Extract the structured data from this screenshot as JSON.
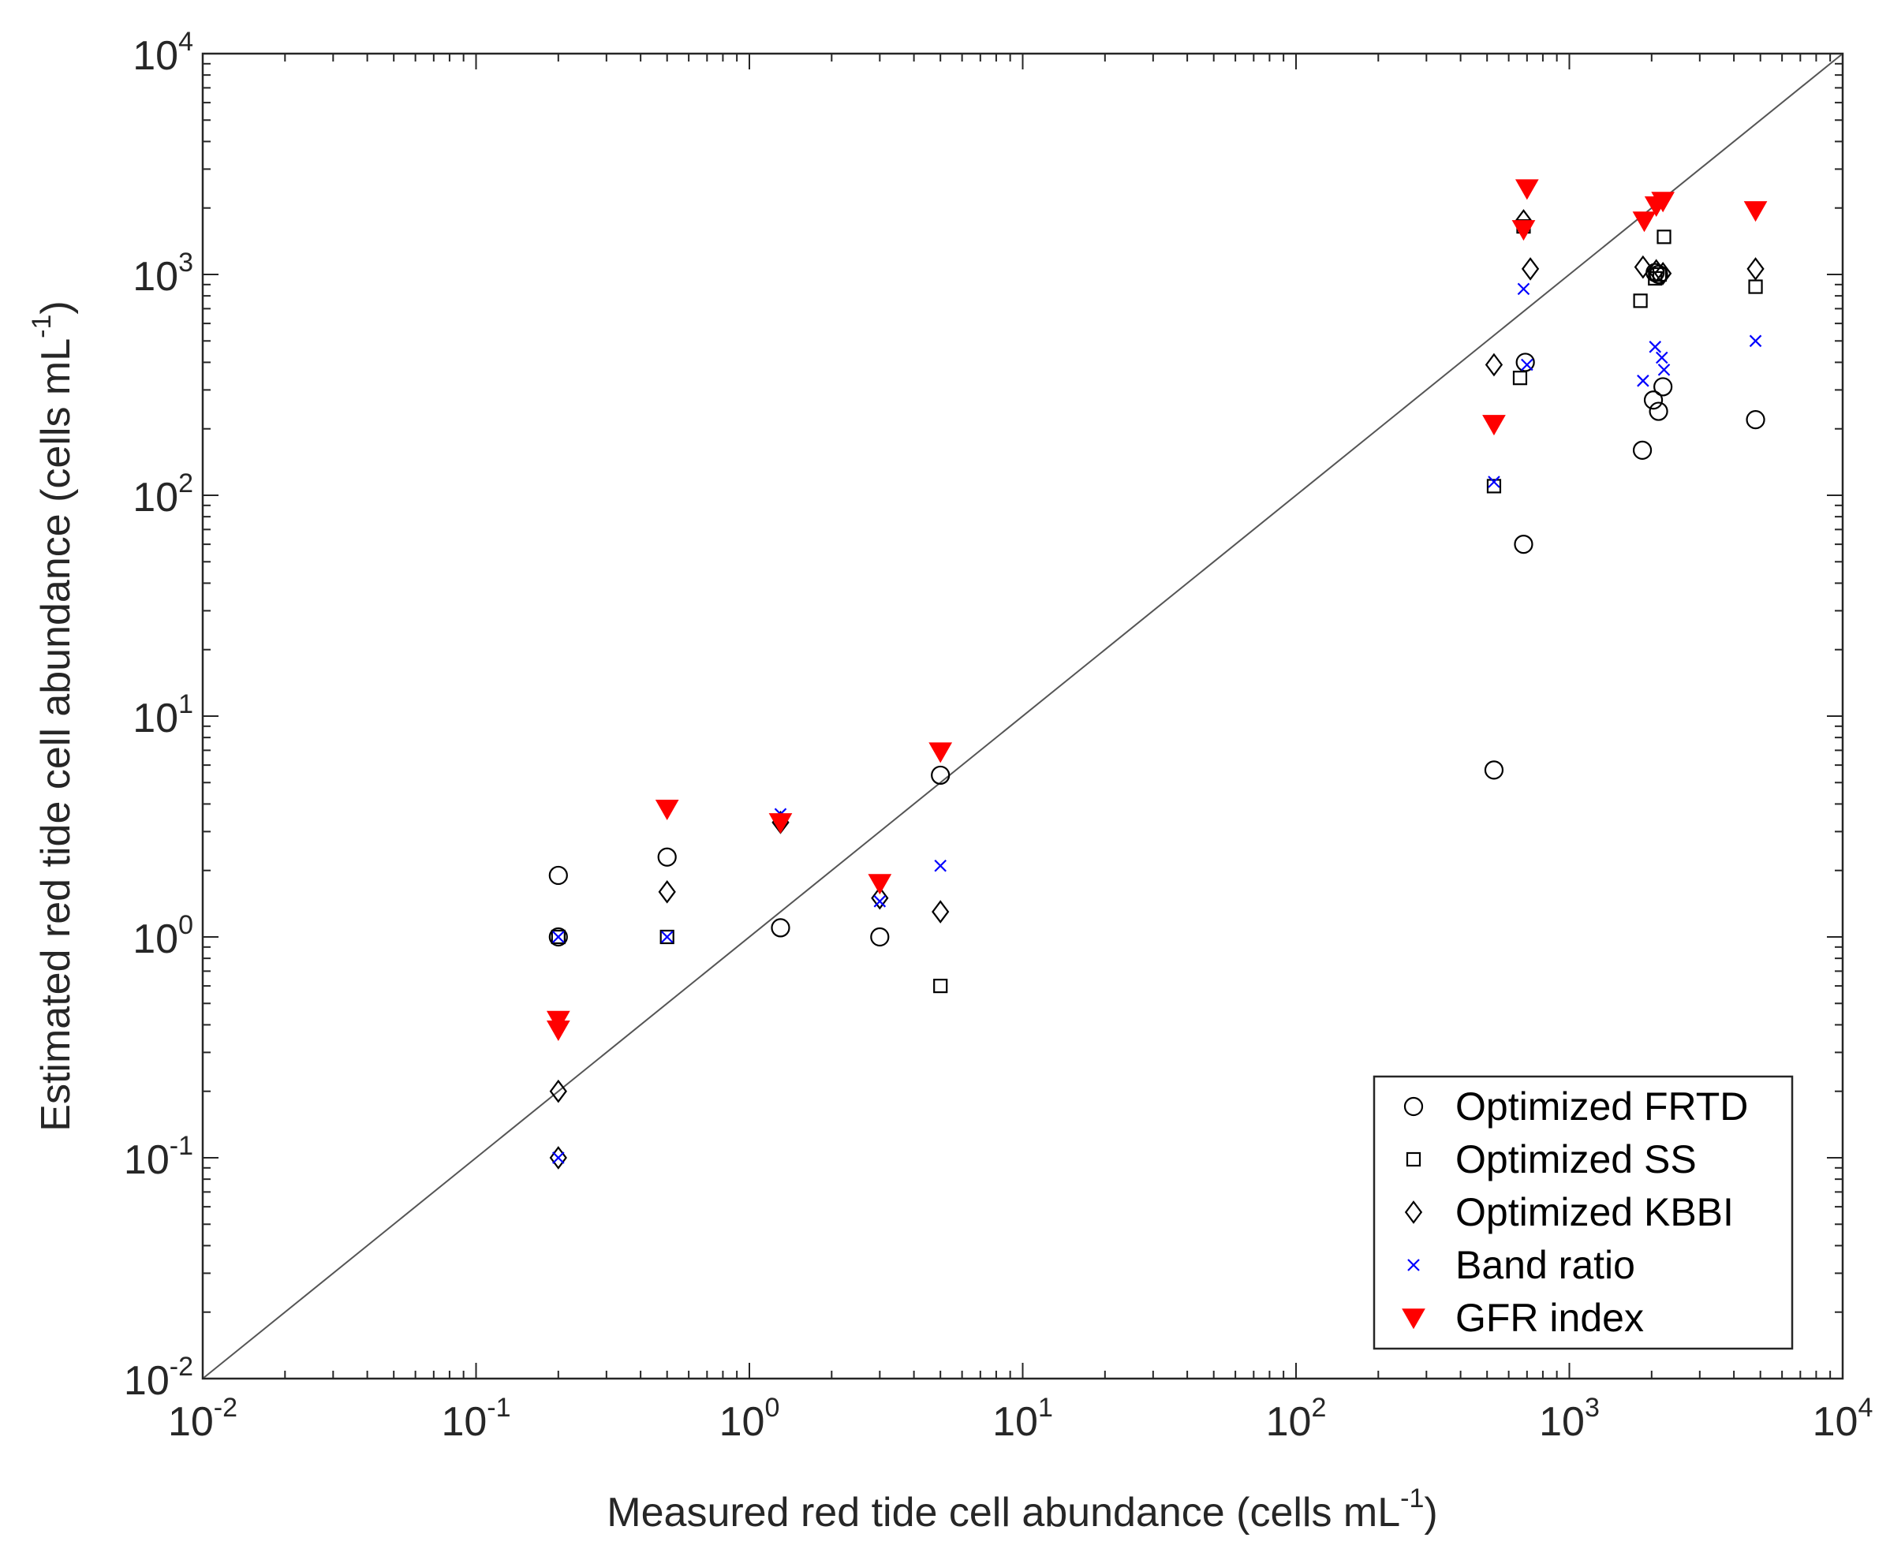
{
  "chart_data": {
    "type": "scatter",
    "xlabel": "Measured red tide cell abundance (cells mL",
    "xlabel_exp": "-1",
    "xlabel_end": ")",
    "ylabel": "Estimated red tide cell abundance (cells mL",
    "ylabel_exp": "-1",
    "ylabel_end": ")",
    "xscale": "log",
    "yscale": "log",
    "xlim": [
      0.01,
      10000
    ],
    "ylim": [
      0.01,
      10000
    ],
    "xticks": [
      {
        "base": "10",
        "exp": "-2",
        "value": 0.01
      },
      {
        "base": "10",
        "exp": "-1",
        "value": 0.1
      },
      {
        "base": "10",
        "exp": "0",
        "value": 1
      },
      {
        "base": "10",
        "exp": "1",
        "value": 10
      },
      {
        "base": "10",
        "exp": "2",
        "value": 100
      },
      {
        "base": "10",
        "exp": "3",
        "value": 1000
      },
      {
        "base": "10",
        "exp": "4",
        "value": 10000
      }
    ],
    "yticks": [
      {
        "base": "10",
        "exp": "-2",
        "value": 0.01
      },
      {
        "base": "10",
        "exp": "-1",
        "value": 0.1
      },
      {
        "base": "10",
        "exp": "0",
        "value": 1
      },
      {
        "base": "10",
        "exp": "1",
        "value": 10
      },
      {
        "base": "10",
        "exp": "2",
        "value": 100
      },
      {
        "base": "10",
        "exp": "3",
        "value": 1000
      },
      {
        "base": "10",
        "exp": "4",
        "value": 10000
      }
    ],
    "grid": false,
    "reference_line": "1:1",
    "legend_position": "bottom-right",
    "series": [
      {
        "name": "Optimized FRTD",
        "marker": "circle",
        "color": "#000000",
        "points": [
          [
            0.2,
            1.9
          ],
          [
            0.2,
            1.0
          ],
          [
            0.5,
            2.3
          ],
          [
            1.3,
            1.1
          ],
          [
            3.0,
            1.0
          ],
          [
            5.0,
            5.4
          ],
          [
            530,
            5.7
          ],
          [
            680,
            60
          ],
          [
            690,
            400
          ],
          [
            1850,
            160
          ],
          [
            2030,
            270
          ],
          [
            2120,
            240
          ],
          [
            2200,
            310
          ],
          [
            2120,
            1000
          ],
          [
            2060,
            1020
          ],
          [
            4800,
            220
          ]
        ]
      },
      {
        "name": "Optimized SS",
        "marker": "square",
        "color": "#000000",
        "points": [
          [
            0.2,
            1.0
          ],
          [
            0.5,
            1.0
          ],
          [
            5.0,
            0.6
          ],
          [
            530,
            110
          ],
          [
            660,
            340
          ],
          [
            680,
            1650
          ],
          [
            1820,
            760
          ],
          [
            2060,
            960
          ],
          [
            2140,
            1000
          ],
          [
            2220,
            1480
          ],
          [
            4800,
            880
          ]
        ]
      },
      {
        "name": "Optimized KBBI",
        "marker": "diamond",
        "color": "#000000",
        "points": [
          [
            0.2,
            0.2
          ],
          [
            0.2,
            0.1
          ],
          [
            0.5,
            1.6
          ],
          [
            1.3,
            3.3
          ],
          [
            3.0,
            1.5
          ],
          [
            5.0,
            1.3
          ],
          [
            530,
            390
          ],
          [
            680,
            1750
          ],
          [
            720,
            1060
          ],
          [
            1860,
            1080
          ],
          [
            2080,
            1040
          ],
          [
            2200,
            1010
          ],
          [
            4800,
            1060
          ]
        ]
      },
      {
        "name": "Band ratio",
        "marker": "x",
        "color": "#0000ff",
        "points": [
          [
            0.2,
            1.0
          ],
          [
            0.2,
            0.1
          ],
          [
            0.5,
            1.0
          ],
          [
            1.3,
            3.6
          ],
          [
            3.0,
            1.45
          ],
          [
            5.0,
            2.1
          ],
          [
            530,
            115
          ],
          [
            680,
            860
          ],
          [
            700,
            390
          ],
          [
            1860,
            330
          ],
          [
            2060,
            470
          ],
          [
            2180,
            420
          ],
          [
            2220,
            370
          ],
          [
            4800,
            500
          ]
        ]
      },
      {
        "name": "GFR index",
        "marker": "triangle-down",
        "color": "#ff0000",
        "points": [
          [
            0.2,
            0.42
          ],
          [
            0.2,
            0.38
          ],
          [
            0.5,
            3.8
          ],
          [
            1.3,
            3.3
          ],
          [
            3.0,
            1.75
          ],
          [
            5.0,
            6.9
          ],
          [
            530,
            210
          ],
          [
            680,
            1600
          ],
          [
            700,
            2450
          ],
          [
            1880,
            1750
          ],
          [
            2080,
            2050
          ],
          [
            2200,
            2150
          ],
          [
            4800,
            1950
          ]
        ]
      }
    ]
  }
}
